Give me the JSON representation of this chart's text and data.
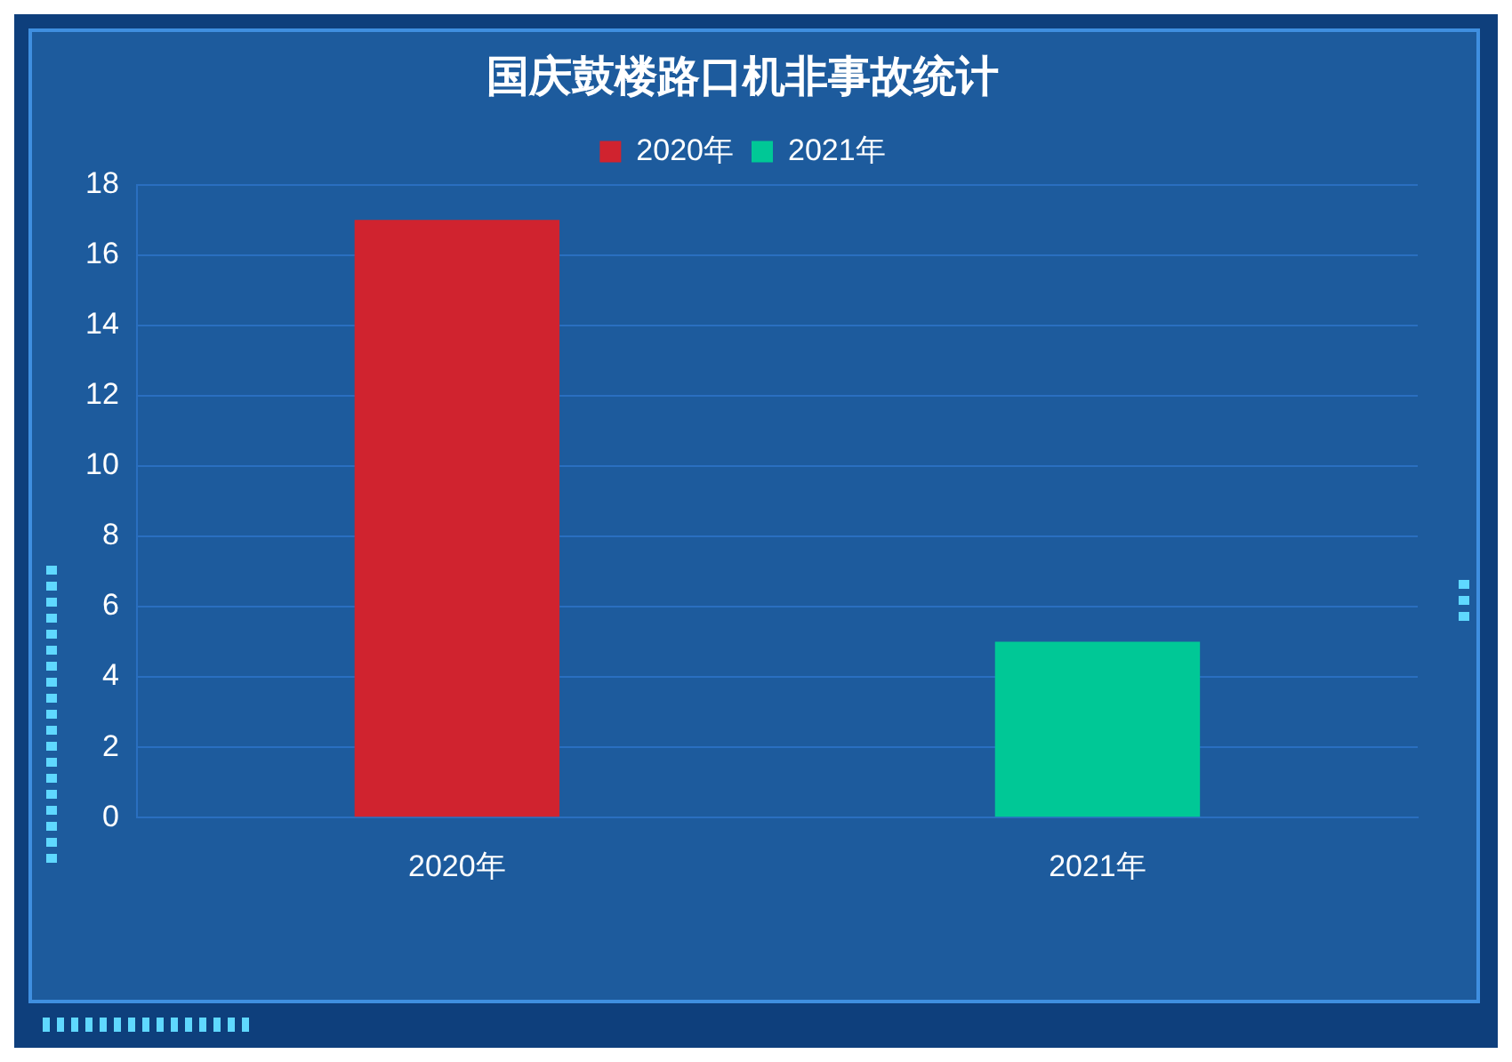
{
  "chart_data": {
    "type": "bar",
    "title": "国庆鼓楼路口机非事故统计",
    "categories": [
      "2020年",
      "2021年"
    ],
    "series": [
      {
        "name": "2020年",
        "color": "#d0232f",
        "values": [
          17,
          null
        ]
      },
      {
        "name": "2021年",
        "color": "#00c896",
        "values": [
          null,
          5
        ]
      }
    ],
    "ylim": [
      0,
      18
    ],
    "yticks": [
      0,
      2,
      4,
      6,
      8,
      10,
      12,
      14,
      16,
      18
    ],
    "grid": "y",
    "legend": "top"
  }
}
